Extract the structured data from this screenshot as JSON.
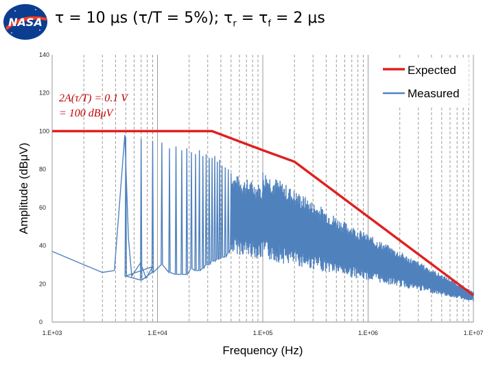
{
  "slide": {
    "title_main": "τ = 10 μs (τ/T = 5%); τ",
    "title_sub_r": "r",
    "title_mid": " = τ",
    "title_sub_f": "f",
    "title_end": " = 2 μs",
    "logo_text": "NASA"
  },
  "chart_data": {
    "type": "line",
    "xlabel": "Frequency (Hz)",
    "ylabel": "Amplitude (dBμV)",
    "xscale": "log",
    "xlim": [
      1000,
      10000000
    ],
    "ylim": [
      0,
      140
    ],
    "x_tick_labels": [
      "1.E+03",
      "1.E+04",
      "1.E+05",
      "1.E+06",
      "1.E+07"
    ],
    "y_tick_labels": [
      "0",
      "20",
      "40",
      "60",
      "80",
      "100",
      "120",
      "140"
    ],
    "grid": "vertical dashed at log minor ticks",
    "legend_position": "top-right",
    "annotation": [
      "2A(τ/T) = 0.1 V",
      "= 100 dBμV"
    ],
    "series": [
      {
        "name": "Expected",
        "color": "#e02020",
        "x": [
          1000,
          10000,
          33000,
          100000,
          200000,
          10000000
        ],
        "y": [
          100,
          100,
          100,
          90,
          84,
          14
        ]
      },
      {
        "name": "Measured",
        "color": "#4f81bd",
        "x": [
          1000,
          2000,
          3000,
          3900,
          4900,
          5300,
          5700,
          6900,
          7800,
          9000,
          10000,
          10000000
        ],
        "y": [
          37,
          30,
          26,
          27,
          98,
          44,
          24,
          31,
          23,
          29,
          27,
          10
        ]
      }
    ]
  }
}
